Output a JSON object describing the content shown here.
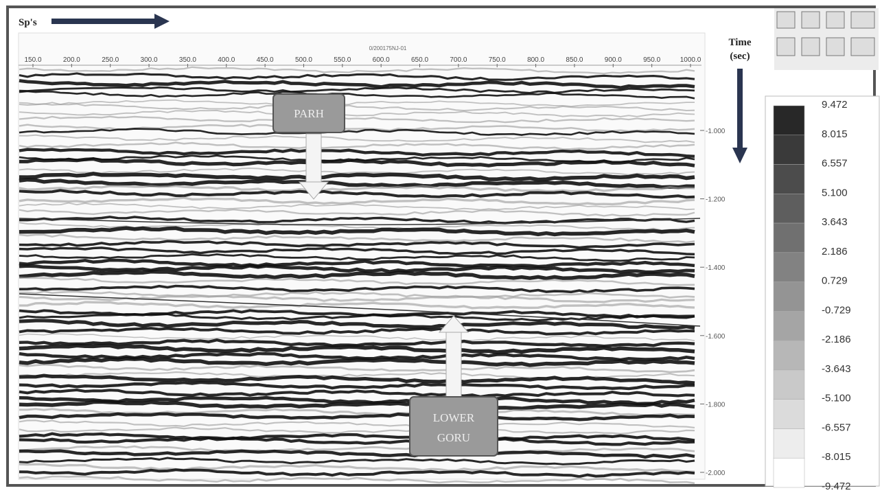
{
  "header": {
    "label": "Sp's",
    "section_name": "0/200175NJ-01"
  },
  "x_axis": {
    "ticks": [
      "150.0",
      "200.0",
      "250.0",
      "300.0",
      "350.0",
      "400.0",
      "450.0",
      "500.0",
      "550.0",
      "600.0",
      "650.0",
      "700.0",
      "750.0",
      "800.0",
      "850.0",
      "900.0",
      "950.0",
      "1000.0"
    ]
  },
  "time_axis": {
    "title_line1": "Time",
    "title_line2": "(sec)",
    "ticks": [
      "-1.000",
      "-1.200",
      "-1.400",
      "-1.600",
      "-1.800",
      "-2.000"
    ]
  },
  "annotations": {
    "upper": "PARH",
    "lower_line1": "LOWER",
    "lower_line2": "GORU"
  },
  "colorbar": {
    "labels": [
      "9.472",
      "8.015",
      "6.557",
      "5.100",
      "3.643",
      "2.186",
      "0.729",
      "-0.729",
      "-2.186",
      "-3.643",
      "-5.100",
      "-6.557",
      "-8.015",
      "-9.472"
    ]
  }
}
